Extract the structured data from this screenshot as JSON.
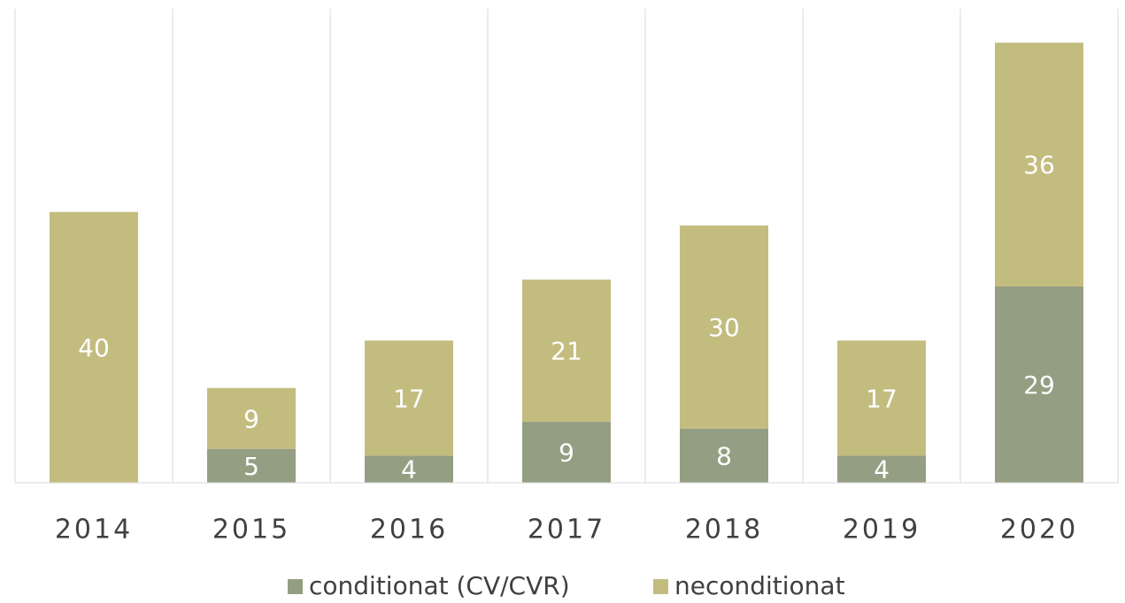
{
  "chart_data": {
    "type": "stacked_bar",
    "categories": [
      "2014",
      "2015",
      "2016",
      "2017",
      "2018",
      "2019",
      "2020"
    ],
    "series": [
      {
        "name": "conditionat (CV/CVR)",
        "color": "#949e82",
        "values": [
          null,
          5,
          4,
          9,
          8,
          4,
          29
        ]
      },
      {
        "name": "neconditionat",
        "color": "#c3bc7f",
        "values": [
          40,
          9,
          17,
          21,
          30,
          17,
          36
        ]
      }
    ],
    "ylim": [
      0,
      70
    ]
  }
}
